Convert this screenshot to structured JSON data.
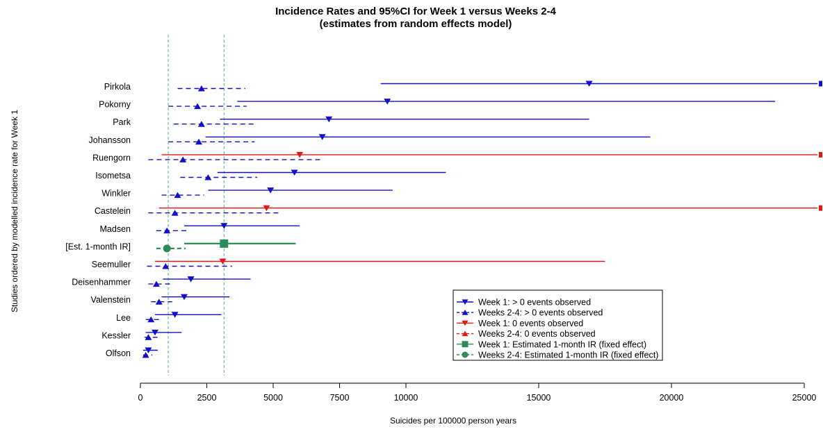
{
  "chart_data": {
    "type": "forest",
    "title": "Incidence Rates and 95%CI for Week 1 versus Weeks 2-4",
    "subtitle": "(estimates from random effects model)",
    "xlabel": "Suicides per 100000 person years",
    "ylabel": "Studies ordered by modelled incidence rate for Week 1",
    "xlim": [
      0,
      25500
    ],
    "xticks": [
      0,
      2500,
      5000,
      7500,
      10000,
      15000,
      20000,
      25000
    ],
    "xtick_labels": [
      "0",
      "2500",
      "5000",
      "7500",
      "10000",
      "15000",
      "20000",
      "25000"
    ],
    "reference_lines": [
      1050,
      3150
    ],
    "colors": {
      "blue": "#1010c8",
      "red": "#e01818",
      "green": "#2e8b57",
      "ref": "#5aa79a"
    },
    "rows": [
      {
        "study": "Pirkola",
        "week1": {
          "est": 16900,
          "lo": 9050,
          "hi": 25500,
          "kind": "obs"
        },
        "weeks24": {
          "est": 2300,
          "lo": 1400,
          "hi": 3950,
          "kind": "obs"
        }
      },
      {
        "study": "Pokorny",
        "week1": {
          "est": 9300,
          "lo": 3650,
          "hi": 23900,
          "kind": "obs"
        },
        "weeks24": {
          "est": 2150,
          "lo": 1050,
          "hi": 4000,
          "kind": "obs"
        }
      },
      {
        "study": "Park",
        "week1": {
          "est": 7100,
          "lo": 3000,
          "hi": 16900,
          "kind": "obs"
        },
        "weeks24": {
          "est": 2300,
          "lo": 1250,
          "hi": 4350,
          "kind": "obs"
        }
      },
      {
        "study": "Johansson",
        "week1": {
          "est": 6850,
          "lo": 2450,
          "hi": 19200,
          "kind": "obs"
        },
        "weeks24": {
          "est": 2200,
          "lo": 1050,
          "hi": 4300,
          "kind": "obs"
        }
      },
      {
        "study": "Ruengorn",
        "week1": {
          "est": 6000,
          "lo": 800,
          "hi": 25500,
          "kind": "zero"
        },
        "weeks24": {
          "est": 1600,
          "lo": 300,
          "hi": 6900,
          "kind": "obs"
        }
      },
      {
        "study": "Isometsa",
        "week1": {
          "est": 5800,
          "lo": 2900,
          "hi": 11500,
          "kind": "obs"
        },
        "weeks24": {
          "est": 2550,
          "lo": 1500,
          "hi": 4400,
          "kind": "obs"
        }
      },
      {
        "study": "Winkler",
        "week1": {
          "est": 4900,
          "lo": 2550,
          "hi": 9500,
          "kind": "obs"
        },
        "weeks24": {
          "est": 1400,
          "lo": 800,
          "hi": 2400,
          "kind": "obs"
        }
      },
      {
        "study": "Castelein",
        "week1": {
          "est": 4750,
          "lo": 700,
          "hi": 25500,
          "kind": "zero"
        },
        "weeks24": {
          "est": 1300,
          "lo": 300,
          "hi": 5200,
          "kind": "obs"
        }
      },
      {
        "study": "Madsen",
        "week1": {
          "est": 3150,
          "lo": 1650,
          "hi": 6000,
          "kind": "obs"
        },
        "weeks24": {
          "est": 1000,
          "lo": 600,
          "hi": 1800,
          "kind": "obs"
        }
      },
      {
        "study": "[Est. 1-month IR]",
        "week1": {
          "est": 3150,
          "lo": 1650,
          "hi": 5850,
          "kind": "fixed"
        },
        "weeks24": {
          "est": 1000,
          "lo": 600,
          "hi": 1700,
          "kind": "fixed"
        }
      },
      {
        "study": "Seemuller",
        "week1": {
          "est": 3100,
          "lo": 550,
          "hi": 17500,
          "kind": "zero"
        },
        "weeks24": {
          "est": 950,
          "lo": 250,
          "hi": 3450,
          "kind": "obs"
        }
      },
      {
        "study": "Deisenhammer",
        "week1": {
          "est": 1900,
          "lo": 850,
          "hi": 4150,
          "kind": "obs"
        },
        "weeks24": {
          "est": 600,
          "lo": 300,
          "hi": 1200,
          "kind": "obs"
        }
      },
      {
        "study": "Valenstein",
        "week1": {
          "est": 1650,
          "lo": 800,
          "hi": 3350,
          "kind": "obs"
        },
        "weeks24": {
          "est": 700,
          "lo": 400,
          "hi": 1200,
          "kind": "obs"
        }
      },
      {
        "study": "Lee",
        "week1": {
          "est": 1300,
          "lo": 550,
          "hi": 3050,
          "kind": "obs"
        },
        "weeks24": {
          "est": 400,
          "lo": 200,
          "hi": 800,
          "kind": "obs"
        }
      },
      {
        "study": "Kessler",
        "week1": {
          "est": 550,
          "lo": 200,
          "hi": 1550,
          "kind": "obs"
        },
        "weeks24": {
          "est": 300,
          "lo": 150,
          "hi": 650,
          "kind": "obs"
        }
      },
      {
        "study": "Olfson",
        "week1": {
          "est": 300,
          "lo": 100,
          "hi": 650,
          "kind": "obs"
        },
        "weeks24": {
          "est": 200,
          "lo": 100,
          "hi": 450,
          "kind": "obs"
        }
      }
    ],
    "legend": {
      "position": "bottom-right",
      "entries": [
        {
          "label": "Week 1: > 0 events observed",
          "color": "#1010c8",
          "marker": "triangle-down",
          "dash": false
        },
        {
          "label": "Weeks 2-4: > 0 events observed",
          "color": "#1010c8",
          "marker": "triangle-up",
          "dash": true
        },
        {
          "label": "Week 1: 0 events observed",
          "color": "#e01818",
          "marker": "triangle-down",
          "dash": false
        },
        {
          "label": "Weeks 2-4: 0 events observed",
          "color": "#e01818",
          "marker": "triangle-up",
          "dash": true
        },
        {
          "label": "Week 1: Estimated 1-month IR (fixed effect)",
          "color": "#2e8b57",
          "marker": "square",
          "dash": false
        },
        {
          "label": "Weeks 2-4: Estimated 1-month IR (fixed effect)",
          "color": "#2e8b57",
          "marker": "circle",
          "dash": true
        }
      ]
    }
  }
}
